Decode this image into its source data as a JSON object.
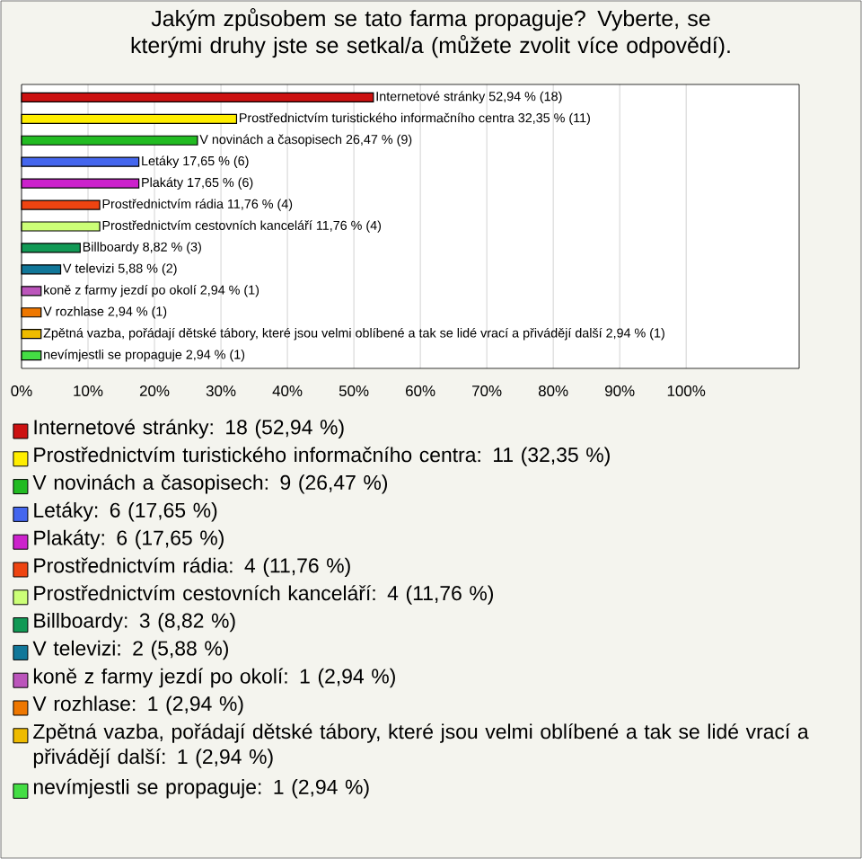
{
  "chart_data": {
    "type": "bar",
    "orientation": "horizontal",
    "title": "Jakým způsobem se tato farma propaguje? Vyberte, se kterými druhy jste se setkal/a (můžete zvolit více odpovědí).",
    "categories": [
      null,
      null,
      null,
      null,
      null,
      null,
      null,
      null,
      null,
      null,
      null,
      null,
      null
    ],
    "values": [
      52.94,
      32.35,
      26.47,
      17.65,
      17.65,
      11.76,
      11.76,
      8.82,
      5.88,
      2.94,
      2.94,
      2.94,
      2.94
    ],
    "value_labels": [
      "Internetové stránky 52,94 % (18)",
      "Prostřednictvím turistického informačního centra 32,35 % (11)",
      "V novinách a časopisech 26,47 % (9)",
      "Letáky 17,65 % (6)",
      "Plakáty 17,65 % (6)",
      "Prostřednictvím rádia 11,76 % (4)",
      "Prostřednictvím cestovních kanceláří 11,76 % (4)",
      "Billboardy 8,82 % (3)",
      "V televizi 5,88 % (2)",
      "koně z farmy jezdí po okolí 2,94 % (1)",
      "V rozhlase 2,94 % (1)",
      "Zpětná vazba, pořádají dětské tábory, které jsou velmi oblíbené a tak se lidé vrací a přivádějí další 2,94 % (1)",
      "nevímjestli se propaguje 2,94 % (1)"
    ],
    "colors": [
      "#cc1111",
      "#ffee00",
      "#22bb22",
      "#4466ee",
      "#cc22cc",
      "#ee4411",
      "#ccff77",
      "#119955",
      "#117799",
      "#bb55bb",
      "#ee7700",
      "#eebb00",
      "#44dd44"
    ],
    "xlim": [
      0,
      117
    ],
    "xticks": [
      {
        "value": 0,
        "label": "0%"
      },
      {
        "value": 10,
        "label": "10%"
      },
      {
        "value": 20,
        "label": "20%"
      },
      {
        "value": 30,
        "label": "30%"
      },
      {
        "value": 40,
        "label": "40%"
      },
      {
        "value": 50,
        "label": "50%"
      },
      {
        "value": 60,
        "label": "60%"
      },
      {
        "value": 70,
        "label": "70%"
      },
      {
        "value": 80,
        "label": "80%"
      },
      {
        "value": 90,
        "label": "90%"
      },
      {
        "value": 100,
        "label": "100%"
      }
    ],
    "grid": "x",
    "tick_labels": "x",
    "annotations": [
      "Internetové stránky: 18 (52,94 %)",
      "Prostřednictvím turistického informačního centra: 11 (32,35 %)",
      "V novinách a časopisech: 9 (26,47 %)",
      "Letáky: 6 (17,65 %)",
      "Plakáty: 6 (17,65 %)",
      "Prostřednictvím rádia: 4 (11,76 %)",
      "Prostřednictvím cestovních kanceláří: 4 (11,76 %)",
      "Billboardy: 3 (8,82 %)",
      "V televizi: 2 (5,88 %)",
      "koně z farmy jezdí po okolí: 1 (2,94 %)",
      "V rozhlase: 1 (2,94 %)",
      "Zpětná vazba, pořádají dětské tábory, které jsou velmi oblíbené a tak se lidé vrací a přivádějí další: 1 (2,94 %)",
      "nevímjestli se propaguje: 1 (2,94 %)"
    ]
  }
}
